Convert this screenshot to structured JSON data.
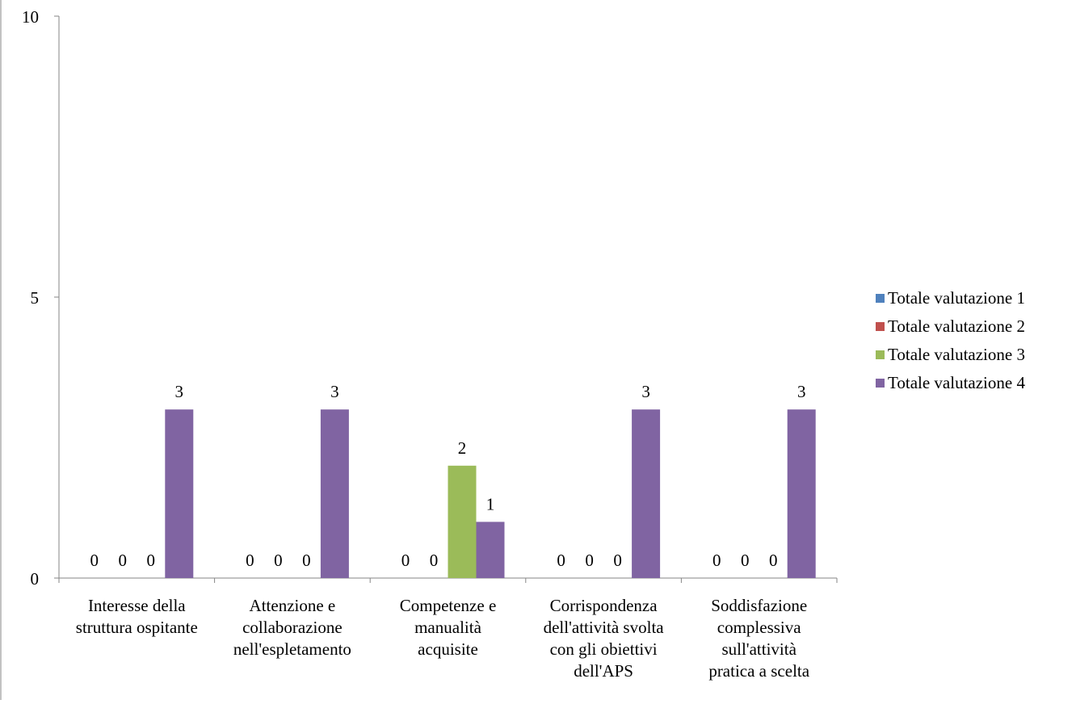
{
  "chart_data": {
    "type": "bar",
    "title": "",
    "xlabel": "",
    "ylabel": "",
    "ylim": [
      0,
      10
    ],
    "yticks": [
      "0",
      "5",
      "10"
    ],
    "categories": [
      [
        "Interesse della",
        "struttura ospitante"
      ],
      [
        "Attenzione e",
        "collaborazione",
        "nell'espletamento"
      ],
      [
        "Competenze e",
        "manualità",
        "acquisite"
      ],
      [
        "Corrispondenza",
        "dell'attività svolta",
        "con gli obiettivi",
        "dell'APS"
      ],
      [
        "Soddisfazione",
        "complessiva",
        "sull'attività",
        "pratica a scelta"
      ]
    ],
    "series": [
      {
        "name": "Totale valutazione 1",
        "color": "#4F81BD",
        "values": [
          0,
          0,
          0,
          0,
          0
        ]
      },
      {
        "name": "Totale valutazione 2",
        "color": "#C0504D",
        "values": [
          0,
          0,
          0,
          0,
          0
        ]
      },
      {
        "name": "Totale valutazione 3",
        "color": "#9BBB59",
        "values": [
          0,
          0,
          2,
          0,
          0
        ]
      },
      {
        "name": "Totale valutazione 4",
        "color": "#8064A2",
        "values": [
          3,
          3,
          1,
          3,
          3
        ]
      }
    ],
    "data_labels": [
      [
        "0",
        "0",
        "0",
        "3"
      ],
      [
        "0",
        "0",
        "0",
        "3"
      ],
      [
        "0",
        "0",
        "2",
        "1"
      ],
      [
        "0",
        "0",
        "0",
        "3"
      ],
      [
        "0",
        "0",
        "0",
        "3"
      ]
    ],
    "grid": false,
    "legend_position": "right"
  }
}
